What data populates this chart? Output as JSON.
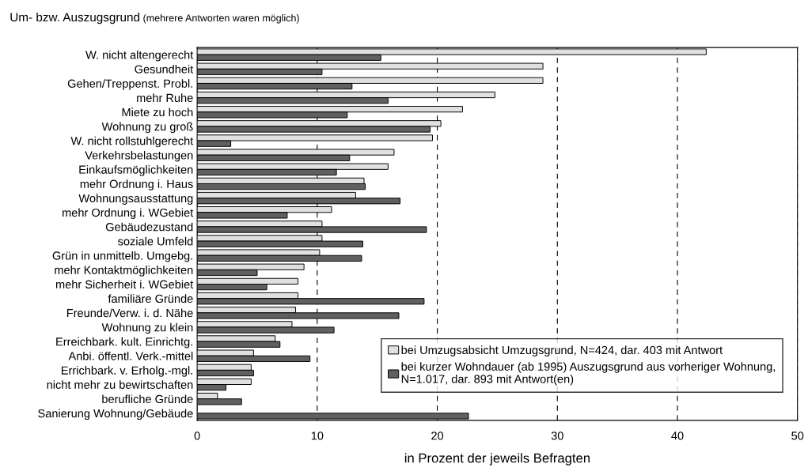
{
  "chart_data": {
    "type": "bar",
    "orientation": "horizontal",
    "title": "Um- bzw. Auszugsgrund",
    "subtitle": "(mehrere Antworten waren möglich)",
    "xlabel": "in Prozent der jeweils Befragten",
    "categories": [
      "W. nicht altengerecht",
      "Gesundheit",
      "Gehen/Treppenst. Probl.",
      "mehr Ruhe",
      "Miete zu hoch",
      "Wohnung zu groß",
      "W. nicht rollstuhlgerecht",
      "Verkehrsbelastungen",
      "Einkaufsmöglichkeiten",
      "mehr Ordnung i. Haus",
      "Wohnungsausstattung",
      "mehr Ordnung i. WGebiet",
      "Gebäudezustand",
      "soziale Umfeld",
      "Grün in unmittelb. Umgebg.",
      "mehr Kontaktmöglichkeiten",
      "mehr Sicherheit i. WGebiet",
      "familiäre Gründe",
      "Freunde/Verw. i. d. Nähe",
      "Wohnung zu klein",
      "Erreichbark. kult. Einrichtg.",
      "Anbi. öffentl. Verk.-mittel",
      "Errichbark. v. Erholg.-mgl.",
      "nicht mehr zu bewirtschaften",
      "berufliche Gründe",
      "Sanierung Wohnung/Gebäude"
    ],
    "series": [
      {
        "name": "bei Umzugsabsicht Umzugsgrund, N=424, dar. 403 mit Antwort",
        "color": "#e0e0e0",
        "values": [
          42.4,
          28.8,
          28.8,
          24.8,
          22.1,
          20.3,
          19.6,
          16.4,
          15.9,
          13.9,
          13.2,
          11.2,
          10.4,
          10.4,
          10.2,
          8.9,
          8.4,
          8.4,
          8.2,
          7.9,
          6.5,
          4.7,
          4.5,
          4.5,
          1.7,
          null
        ]
      },
      {
        "name": "bei kurzer Wohndauer (ab 1995) Auszugsgrund aus vorheriger Wohnung,\nN=1.017, dar. 893 mit Antwort(en)",
        "color": "#606060",
        "values": [
          15.3,
          10.4,
          12.9,
          15.9,
          12.5,
          19.4,
          2.8,
          12.7,
          11.6,
          14.0,
          16.9,
          7.5,
          19.1,
          13.8,
          13.7,
          5.0,
          5.8,
          18.9,
          16.8,
          11.4,
          6.9,
          9.4,
          4.7,
          2.4,
          3.7,
          22.6
        ]
      }
    ],
    "xlim": [
      0,
      50
    ],
    "xticks": [
      0,
      10,
      20,
      30,
      40,
      50
    ],
    "grid": "x",
    "legend": "bottom right"
  }
}
